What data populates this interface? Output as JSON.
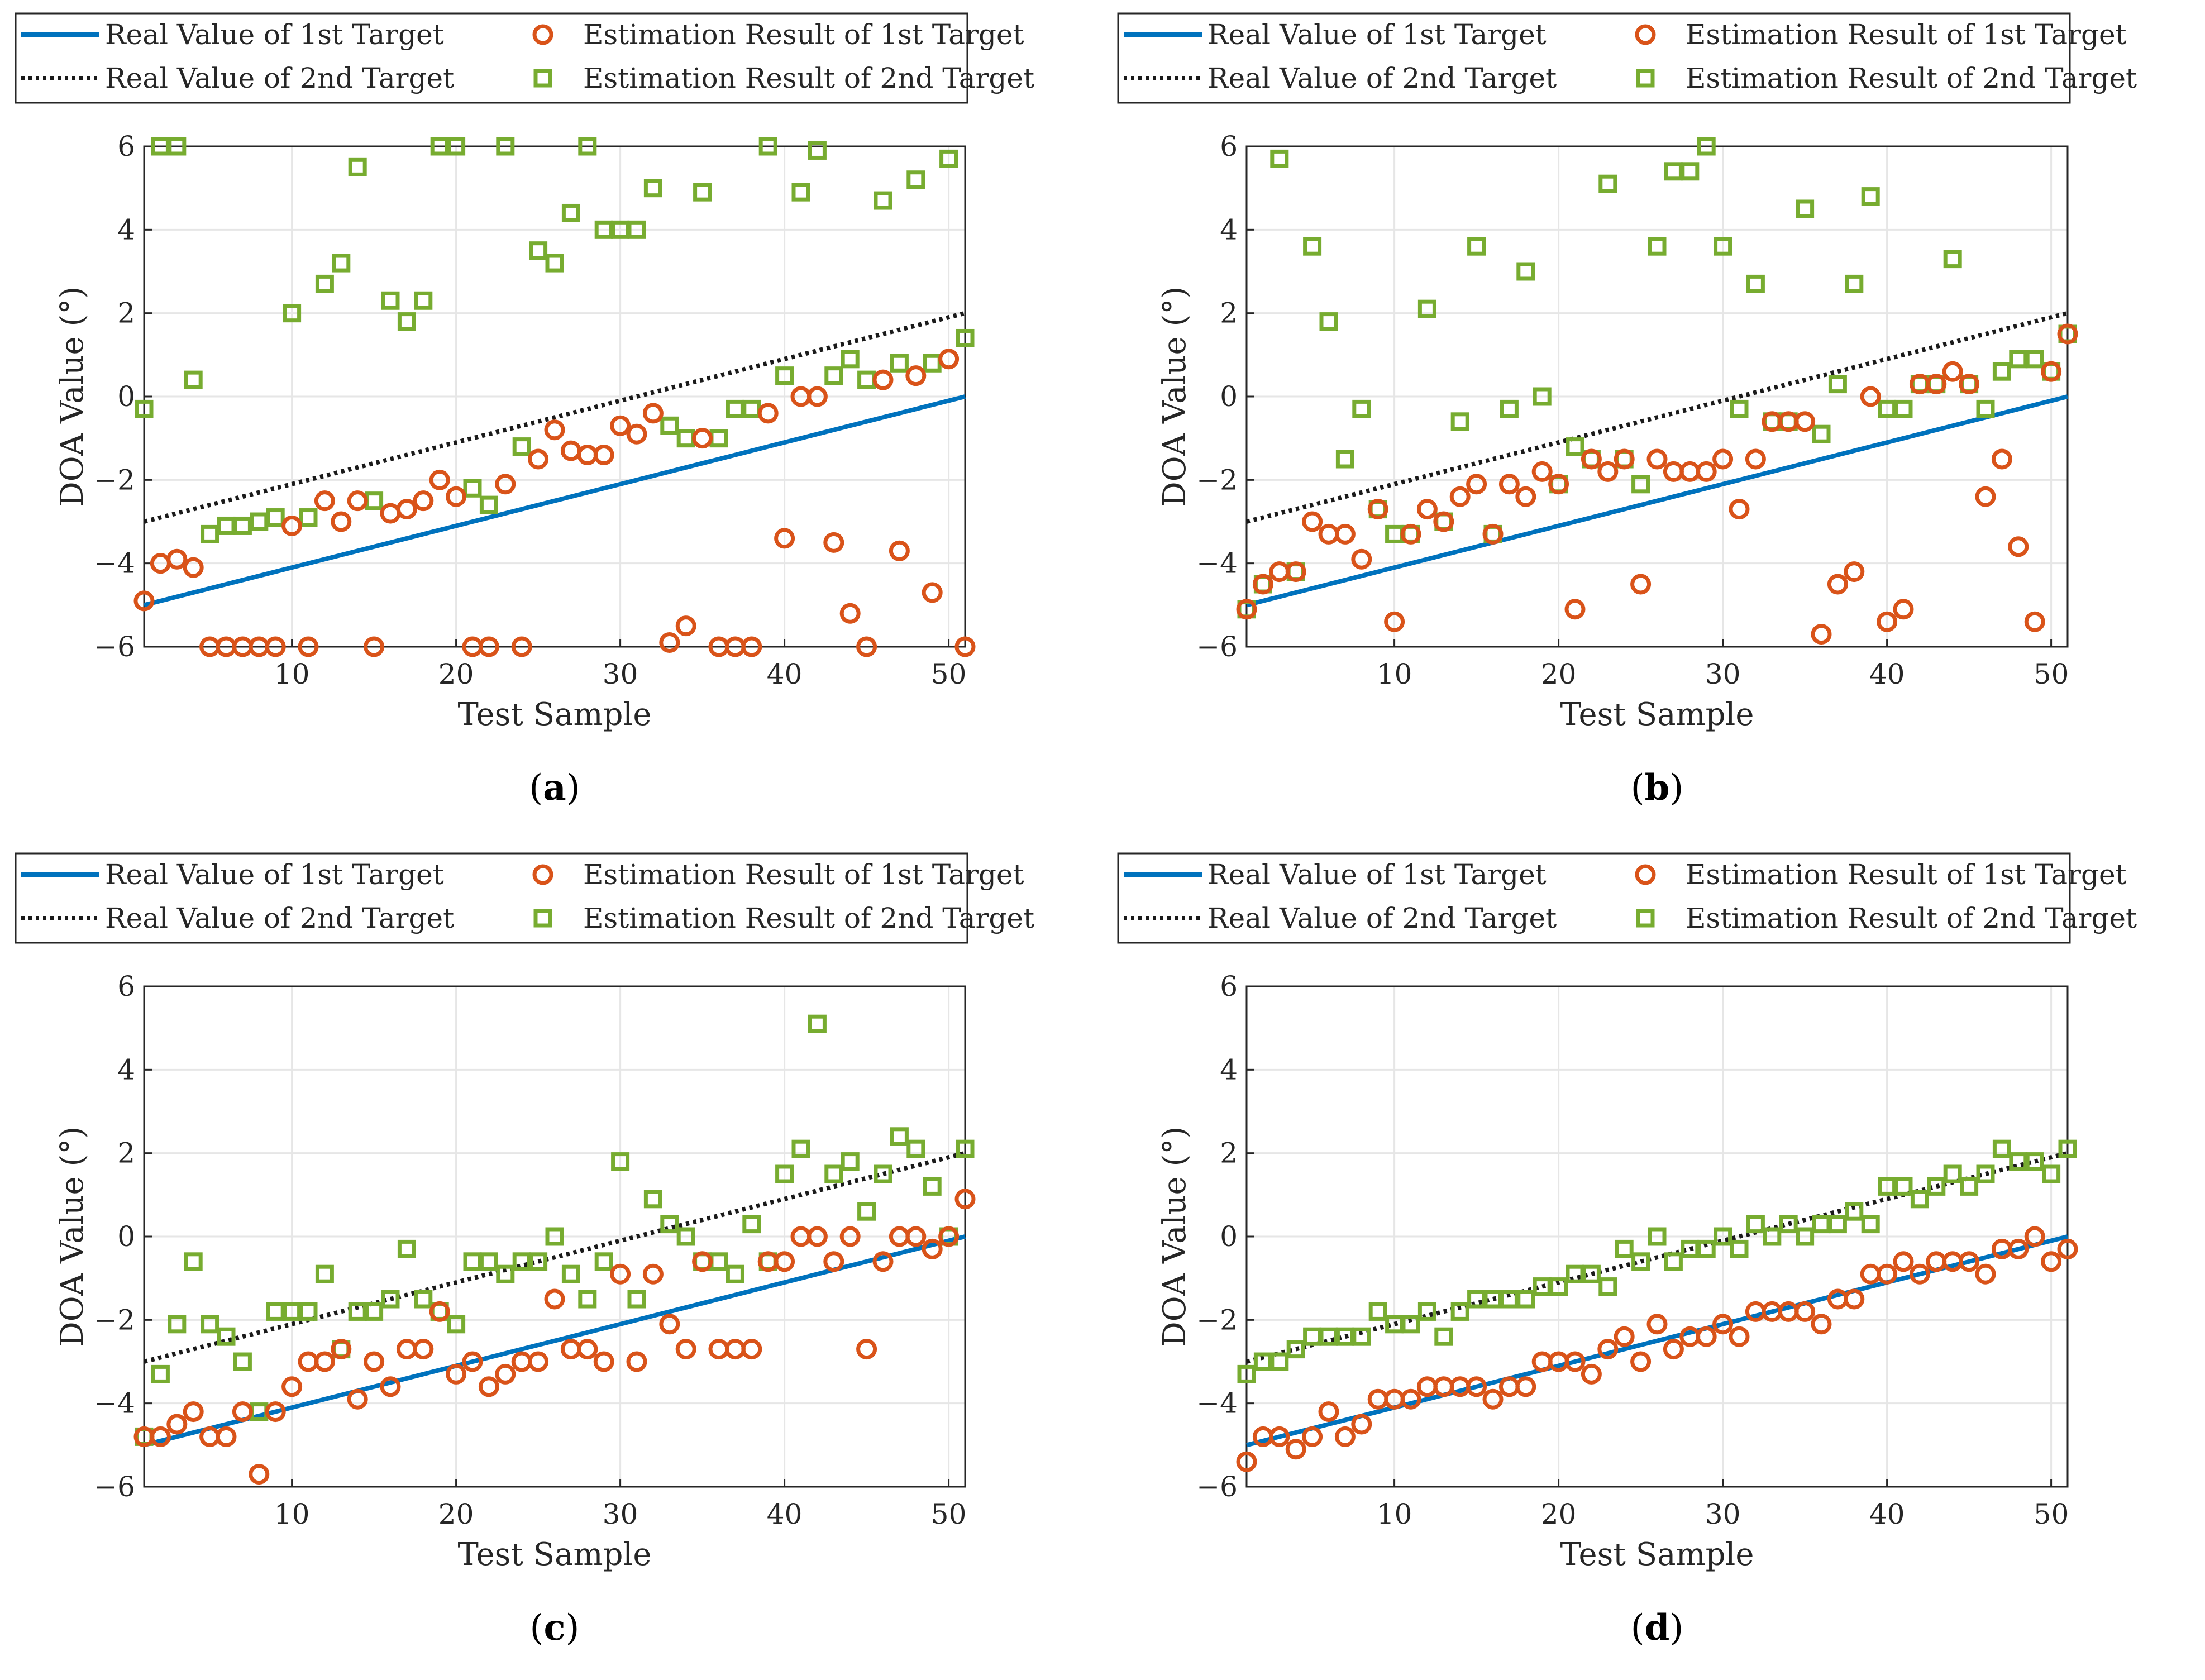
{
  "figure": {
    "legend": {
      "real1": "Real Value of 1st Target",
      "real2": "Real Value of 2nd Target",
      "est1": "Estimation Result of 1st Target",
      "est2": "Estimation Result of 2nd Target"
    },
    "colors": {
      "real1": "#0072BD",
      "real2": "#1a1a1a",
      "est1": "#D95319",
      "est2": "#77AC30",
      "grid": "#e6e6e6",
      "axis": "#262626"
    }
  },
  "chart_data": [
    {
      "type": "scatter",
      "panel": "a",
      "caption": "a",
      "xlabel": "Test Sample",
      "ylabel": "DOA Value (°)",
      "xlim": [
        1,
        51
      ],
      "ylim": [
        -6,
        6
      ],
      "xticks": [
        10,
        20,
        30,
        40,
        50
      ],
      "yticks": [
        -6,
        -4,
        -2,
        0,
        2,
        4,
        6
      ],
      "grid": true,
      "legend": "top",
      "real1": {
        "from": [
          1,
          -5
        ],
        "to": [
          51,
          0
        ]
      },
      "real2": {
        "from": [
          1,
          -3
        ],
        "to": [
          51,
          2
        ]
      },
      "est1": [
        -4.9,
        -4.0,
        -3.9,
        -4.1,
        -6,
        -6,
        -6,
        -6,
        -6,
        -3.1,
        -6,
        -2.5,
        -3.0,
        -2.5,
        -6,
        -2.8,
        -2.7,
        -2.5,
        -2.0,
        -2.4,
        -6,
        -6,
        -2.1,
        -6,
        -1.5,
        -0.8,
        -1.3,
        -1.4,
        -1.4,
        -0.7,
        -0.9,
        -0.4,
        -5.9,
        -5.5,
        -1.0,
        -6,
        -6,
        -6,
        -0.4,
        -3.4,
        0.0,
        0.0,
        -3.5,
        -5.2,
        -6,
        0.4,
        -3.7,
        0.5,
        -4.7,
        0.9,
        -6
      ],
      "est2": [
        -0.3,
        6,
        6,
        0.4,
        -3.3,
        -3.1,
        -3.1,
        -3.0,
        -2.9,
        2.0,
        -2.9,
        2.7,
        3.2,
        5.5,
        -2.5,
        2.3,
        1.8,
        2.3,
        6,
        6,
        -2.2,
        -2.6,
        6,
        -1.2,
        3.5,
        3.2,
        4.4,
        6,
        4.0,
        4.0,
        4.0,
        5.0,
        -0.7,
        -1.0,
        4.9,
        -1.0,
        -0.3,
        -0.3,
        6,
        0.5,
        4.9,
        5.9,
        0.5,
        0.9,
        0.4,
        4.7,
        0.8,
        5.2,
        0.8,
        5.7,
        1.4
      ]
    },
    {
      "type": "scatter",
      "panel": "b",
      "caption": "b",
      "xlabel": "Test Sample",
      "ylabel": "DOA Value (°)",
      "xlim": [
        1,
        51
      ],
      "ylim": [
        -6,
        6
      ],
      "xticks": [
        10,
        20,
        30,
        40,
        50
      ],
      "yticks": [
        -6,
        -4,
        -2,
        0,
        2,
        4,
        6
      ],
      "grid": true,
      "legend": "top",
      "real1": {
        "from": [
          1,
          -5
        ],
        "to": [
          51,
          0
        ]
      },
      "real2": {
        "from": [
          1,
          -3
        ],
        "to": [
          51,
          2
        ]
      },
      "est1": [
        -5.1,
        -4.5,
        -4.2,
        -4.2,
        -3.0,
        -3.3,
        -3.3,
        -3.9,
        -2.7,
        -5.4,
        -3.3,
        -2.7,
        -3.0,
        -2.4,
        -2.1,
        -3.3,
        -2.1,
        -2.4,
        -1.8,
        -2.1,
        -5.1,
        -1.5,
        -1.8,
        -1.5,
        -4.5,
        -1.5,
        -1.8,
        -1.8,
        -1.8,
        -1.5,
        -2.7,
        -1.5,
        -0.6,
        -0.6,
        -0.6,
        -5.7,
        -4.5,
        -4.2,
        0.0,
        -5.4,
        -5.1,
        0.3,
        0.3,
        0.6,
        0.3,
        -2.4,
        -1.5,
        -3.6,
        -5.4,
        0.6,
        1.5
      ],
      "est2": [
        -5.1,
        -4.5,
        5.7,
        -4.2,
        3.6,
        1.8,
        -1.5,
        -0.3,
        -2.7,
        -3.3,
        -3.3,
        2.1,
        -3.0,
        -0.6,
        3.6,
        -3.3,
        -0.3,
        3.0,
        0.0,
        -2.1,
        -1.2,
        -1.5,
        5.1,
        -1.5,
        -2.1,
        3.6,
        5.4,
        5.4,
        6.0,
        3.6,
        -0.3,
        2.7,
        -0.6,
        -0.6,
        4.5,
        -0.9,
        0.3,
        2.7,
        4.8,
        -0.3,
        -0.3,
        0.3,
        0.3,
        3.3,
        0.3,
        -0.3,
        0.6,
        0.9,
        0.9,
        0.6,
        1.5
      ]
    },
    {
      "type": "scatter",
      "panel": "c",
      "caption": "c",
      "xlabel": "Test Sample",
      "ylabel": "DOA Value (°)",
      "xlim": [
        1,
        51
      ],
      "ylim": [
        -6,
        6
      ],
      "xticks": [
        10,
        20,
        30,
        40,
        50
      ],
      "yticks": [
        -6,
        -4,
        -2,
        0,
        2,
        4,
        6
      ],
      "grid": true,
      "legend": "top",
      "real1": {
        "from": [
          1,
          -5
        ],
        "to": [
          51,
          0
        ]
      },
      "real2": {
        "from": [
          1,
          -3
        ],
        "to": [
          51,
          2
        ]
      },
      "est1": [
        -4.8,
        -4.8,
        -4.5,
        -4.2,
        -4.8,
        -4.8,
        -4.2,
        -5.7,
        -4.2,
        -3.6,
        -3.0,
        -3.0,
        -2.7,
        -3.9,
        -3.0,
        -3.6,
        -2.7,
        -2.7,
        -1.8,
        -3.3,
        -3.0,
        -3.6,
        -3.3,
        -3.0,
        -3.0,
        -1.5,
        -2.7,
        -2.7,
        -3.0,
        -0.9,
        -3.0,
        -0.9,
        -2.1,
        -2.7,
        -0.6,
        -2.7,
        -2.7,
        -2.7,
        -0.6,
        -0.6,
        0.0,
        0.0,
        -0.6,
        0.0,
        -2.7,
        -0.6,
        0.0,
        0.0,
        -0.3,
        0.0,
        0.9
      ],
      "est2": [
        -4.8,
        -3.3,
        -2.1,
        -0.6,
        -2.1,
        -2.4,
        -3.0,
        -4.2,
        -1.8,
        -1.8,
        -1.8,
        -0.9,
        -2.7,
        -1.8,
        -1.8,
        -1.5,
        -0.3,
        -1.5,
        -1.8,
        -2.1,
        -0.6,
        -0.6,
        -0.9,
        -0.6,
        -0.6,
        0.0,
        -0.9,
        -1.5,
        -0.6,
        1.8,
        -1.5,
        0.9,
        0.3,
        0.0,
        -0.6,
        -0.6,
        -0.9,
        0.3,
        -0.6,
        1.5,
        2.1,
        5.1,
        1.5,
        1.8,
        0.6,
        1.5,
        2.4,
        2.1,
        1.2,
        0.0,
        2.1
      ]
    },
    {
      "type": "scatter",
      "panel": "d",
      "caption": "d",
      "xlabel": "Test Sample",
      "ylabel": "DOA Value (°)",
      "xlim": [
        1,
        51
      ],
      "ylim": [
        -6,
        6
      ],
      "xticks": [
        10,
        20,
        30,
        40,
        50
      ],
      "yticks": [
        -6,
        -4,
        -2,
        0,
        2,
        4,
        6
      ],
      "grid": true,
      "legend": "top",
      "real1": {
        "from": [
          1,
          -5
        ],
        "to": [
          51,
          0
        ]
      },
      "real2": {
        "from": [
          1,
          -3
        ],
        "to": [
          51,
          2
        ]
      },
      "est1": [
        -5.4,
        -4.8,
        -4.8,
        -5.1,
        -4.8,
        -4.2,
        -4.8,
        -4.5,
        -3.9,
        -3.9,
        -3.9,
        -3.6,
        -3.6,
        -3.6,
        -3.6,
        -3.9,
        -3.6,
        -3.6,
        -3.0,
        -3.0,
        -3.0,
        -3.3,
        -2.7,
        -2.4,
        -3.0,
        -2.1,
        -2.7,
        -2.4,
        -2.4,
        -2.1,
        -2.4,
        -1.8,
        -1.8,
        -1.8,
        -1.8,
        -2.1,
        -1.5,
        -1.5,
        -0.9,
        -0.9,
        -0.6,
        -0.9,
        -0.6,
        -0.6,
        -0.6,
        -0.9,
        -0.3,
        -0.3,
        0.0,
        -0.6,
        -0.3
      ],
      "est2": [
        -3.3,
        -3.0,
        -3.0,
        -2.7,
        -2.4,
        -2.4,
        -2.4,
        -2.4,
        -1.8,
        -2.1,
        -2.1,
        -1.8,
        -2.4,
        -1.8,
        -1.5,
        -1.5,
        -1.5,
        -1.5,
        -1.2,
        -1.2,
        -0.9,
        -0.9,
        -1.2,
        -0.3,
        -0.6,
        0.0,
        -0.6,
        -0.3,
        -0.3,
        0.0,
        -0.3,
        0.3,
        0.0,
        0.3,
        0.0,
        0.3,
        0.3,
        0.6,
        0.3,
        1.2,
        1.2,
        0.9,
        1.2,
        1.5,
        1.2,
        1.5,
        2.1,
        1.8,
        1.8,
        1.5,
        2.1
      ]
    }
  ]
}
